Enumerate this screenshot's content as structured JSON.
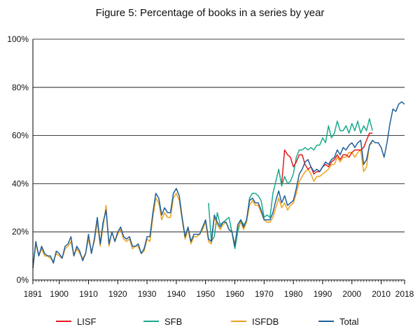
{
  "chart_data": {
    "type": "line",
    "title": "Figure 5: Percentage of books in a series by year",
    "xlabel": "",
    "ylabel": "",
    "xlim": [
      1891,
      2018
    ],
    "ylim": [
      0,
      100
    ],
    "x_ticks": [
      1891,
      1900,
      1910,
      1920,
      1930,
      1940,
      1950,
      1960,
      1970,
      1980,
      1990,
      2000,
      2010,
      2018
    ],
    "y_ticks": [
      0,
      20,
      40,
      60,
      80,
      100
    ],
    "y_tick_labels": [
      "0%",
      "20%",
      "40%",
      "60%",
      "80%",
      "100%"
    ],
    "grid": "horizontal",
    "legend_position": "bottom",
    "series": [
      {
        "name": "Total",
        "color": "#1f5f9c",
        "x": [
          1891,
          1892,
          1893,
          1894,
          1895,
          1896,
          1897,
          1898,
          1899,
          1900,
          1901,
          1902,
          1903,
          1904,
          1905,
          1906,
          1907,
          1908,
          1909,
          1910,
          1911,
          1912,
          1913,
          1914,
          1915,
          1916,
          1917,
          1918,
          1919,
          1920,
          1921,
          1922,
          1923,
          1924,
          1925,
          1926,
          1927,
          1928,
          1929,
          1930,
          1931,
          1932,
          1933,
          1934,
          1935,
          1936,
          1937,
          1938,
          1939,
          1940,
          1941,
          1942,
          1943,
          1944,
          1945,
          1946,
          1947,
          1948,
          1949,
          1950,
          1951,
          1952,
          1953,
          1954,
          1955,
          1956,
          1957,
          1958,
          1959,
          1960,
          1961,
          1962,
          1963,
          1964,
          1965,
          1966,
          1967,
          1968,
          1969,
          1970,
          1971,
          1972,
          1973,
          1974,
          1975,
          1976,
          1977,
          1978,
          1979,
          1980,
          1981,
          1982,
          1983,
          1984,
          1985,
          1986,
          1987,
          1988,
          1989,
          1990,
          1991,
          1992,
          1993,
          1994,
          1995,
          1996,
          1997,
          1998,
          1999,
          2000,
          2001,
          2002,
          2003,
          2004,
          2005,
          2006,
          2007,
          2008,
          2009,
          2010,
          2011,
          2012,
          2013,
          2014,
          2015,
          2016,
          2017,
          2018
        ],
        "values": [
          5,
          16,
          10,
          14,
          11,
          10,
          10,
          7,
          12,
          11,
          9,
          14,
          15,
          18,
          10,
          14,
          12,
          8,
          11,
          19,
          11,
          17,
          26,
          15,
          24,
          29,
          15,
          20,
          16,
          20,
          22,
          18,
          17,
          18,
          14,
          14,
          15,
          11,
          13,
          18,
          18,
          28,
          36,
          34,
          27,
          30,
          28,
          28,
          36,
          38,
          35,
          26,
          18,
          22,
          16,
          19,
          19,
          19,
          22,
          25,
          17,
          16,
          27,
          24,
          22,
          24,
          24,
          21,
          20,
          14,
          23,
          25,
          22,
          25,
          33,
          34,
          32,
          32,
          29,
          25,
          25,
          25,
          28,
          33,
          37,
          32,
          35,
          31,
          32,
          33,
          38,
          44,
          46,
          49,
          50,
          47,
          45,
          46,
          45,
          47,
          49,
          48,
          50,
          51,
          54,
          52,
          55,
          54,
          56,
          57,
          55,
          57,
          58,
          48,
          50,
          56,
          58,
          57,
          57,
          55,
          51,
          57,
          65,
          71,
          70,
          73,
          74,
          73
        ]
      },
      {
        "name": "LISF",
        "color": "#e31a1c",
        "x": [
          1976,
          1977,
          1978,
          1979,
          1980,
          1981,
          1982,
          1983,
          1984,
          1985,
          1986,
          1987,
          1988,
          1989,
          1990,
          1991,
          1992,
          1993,
          1994,
          1995,
          1996,
          1997,
          1998,
          1999,
          2000,
          2001,
          2002,
          2003,
          2004,
          2005,
          2006,
          2007
        ],
        "values": [
          40,
          54,
          52,
          51,
          47,
          49,
          52,
          52,
          48,
          46,
          47,
          44,
          45,
          45,
          47,
          48,
          47,
          49,
          50,
          52,
          50,
          52,
          52,
          51,
          53,
          54,
          54,
          54,
          55,
          58,
          61,
          61
        ]
      },
      {
        "name": "SFB",
        "color": "#1aaa8c",
        "x": [
          1951,
          1952,
          1953,
          1954,
          1955,
          1956,
          1957,
          1958,
          1959,
          1960,
          1961,
          1962,
          1963,
          1964,
          1965,
          1966,
          1967,
          1968,
          1969,
          1970,
          1971,
          1972,
          1973,
          1974,
          1975,
          1976,
          1977,
          1978,
          1979,
          1980,
          1981,
          1982,
          1983,
          1984,
          1985,
          1986,
          1987,
          1988,
          1989,
          1990,
          1991,
          1992,
          1993,
          1994,
          1995,
          1996,
          1997,
          1998,
          1999,
          2000,
          2001,
          2002,
          2003,
          2004,
          2005,
          2006,
          2007
        ],
        "values": [
          32,
          16,
          18,
          28,
          23,
          24,
          25,
          26,
          20,
          13,
          20,
          25,
          23,
          24,
          34,
          36,
          36,
          35,
          33,
          26,
          27,
          26,
          36,
          41,
          46,
          39,
          43,
          40,
          41,
          44,
          51,
          54,
          54,
          55,
          54,
          55,
          54,
          56,
          56,
          59,
          57,
          64,
          59,
          61,
          66,
          62,
          62,
          64,
          61,
          65,
          62,
          66,
          61,
          64,
          62,
          67,
          62
        ]
      },
      {
        "name": "ISFDB",
        "color": "#f0a11a",
        "x": [
          1891,
          1892,
          1893,
          1894,
          1895,
          1896,
          1897,
          1898,
          1899,
          1900,
          1901,
          1902,
          1903,
          1904,
          1905,
          1906,
          1907,
          1908,
          1909,
          1910,
          1911,
          1912,
          1913,
          1914,
          1915,
          1916,
          1917,
          1918,
          1919,
          1920,
          1921,
          1922,
          1923,
          1924,
          1925,
          1926,
          1927,
          1928,
          1929,
          1930,
          1931,
          1932,
          1933,
          1934,
          1935,
          1936,
          1937,
          1938,
          1939,
          1940,
          1941,
          1942,
          1943,
          1944,
          1945,
          1946,
          1947,
          1948,
          1949,
          1950,
          1951,
          1952,
          1953,
          1954,
          1955,
          1956,
          1957,
          1958,
          1959,
          1960,
          1961,
          1962,
          1963,
          1964,
          1965,
          1966,
          1967,
          1968,
          1969,
          1970,
          1971,
          1972,
          1973,
          1974,
          1975,
          1976,
          1977,
          1978,
          1979,
          1980,
          1981,
          1982,
          1983,
          1984,
          1985,
          1986,
          1987,
          1988,
          1989,
          1990,
          1991,
          1992,
          1993,
          1994,
          1995,
          1996,
          1997,
          1998,
          1999,
          2000,
          2001,
          2002,
          2003,
          2004,
          2005,
          2006,
          2007
        ],
        "values": [
          5,
          15,
          10,
          13,
          10,
          10,
          9,
          8,
          11,
          10,
          9,
          13,
          14,
          16,
          10,
          13,
          11,
          9,
          11,
          17,
          12,
          16,
          24,
          14,
          22,
          31,
          14,
          20,
          16,
          19,
          21,
          17,
          16,
          17,
          13,
          14,
          14,
          11,
          12,
          17,
          16,
          26,
          34,
          32,
          25,
          28,
          26,
          26,
          34,
          36,
          33,
          25,
          17,
          21,
          15,
          18,
          18,
          19,
          21,
          24,
          16,
          15,
          26,
          23,
          21,
          23,
          24,
          21,
          20,
          15,
          22,
          24,
          21,
          24,
          31,
          33,
          31,
          31,
          28,
          25,
          24,
          24,
          26,
          30,
          34,
          30,
          32,
          29,
          31,
          32,
          36,
          41,
          43,
          45,
          46,
          44,
          41,
          43,
          43,
          44,
          45,
          46,
          48,
          48,
          51,
          49,
          51,
          51,
          53,
          53,
          51,
          53,
          54,
          45,
          47,
          56,
          57
        ]
      }
    ],
    "legend_order": [
      "LISF",
      "SFB",
      "ISFDB",
      "Total"
    ]
  }
}
